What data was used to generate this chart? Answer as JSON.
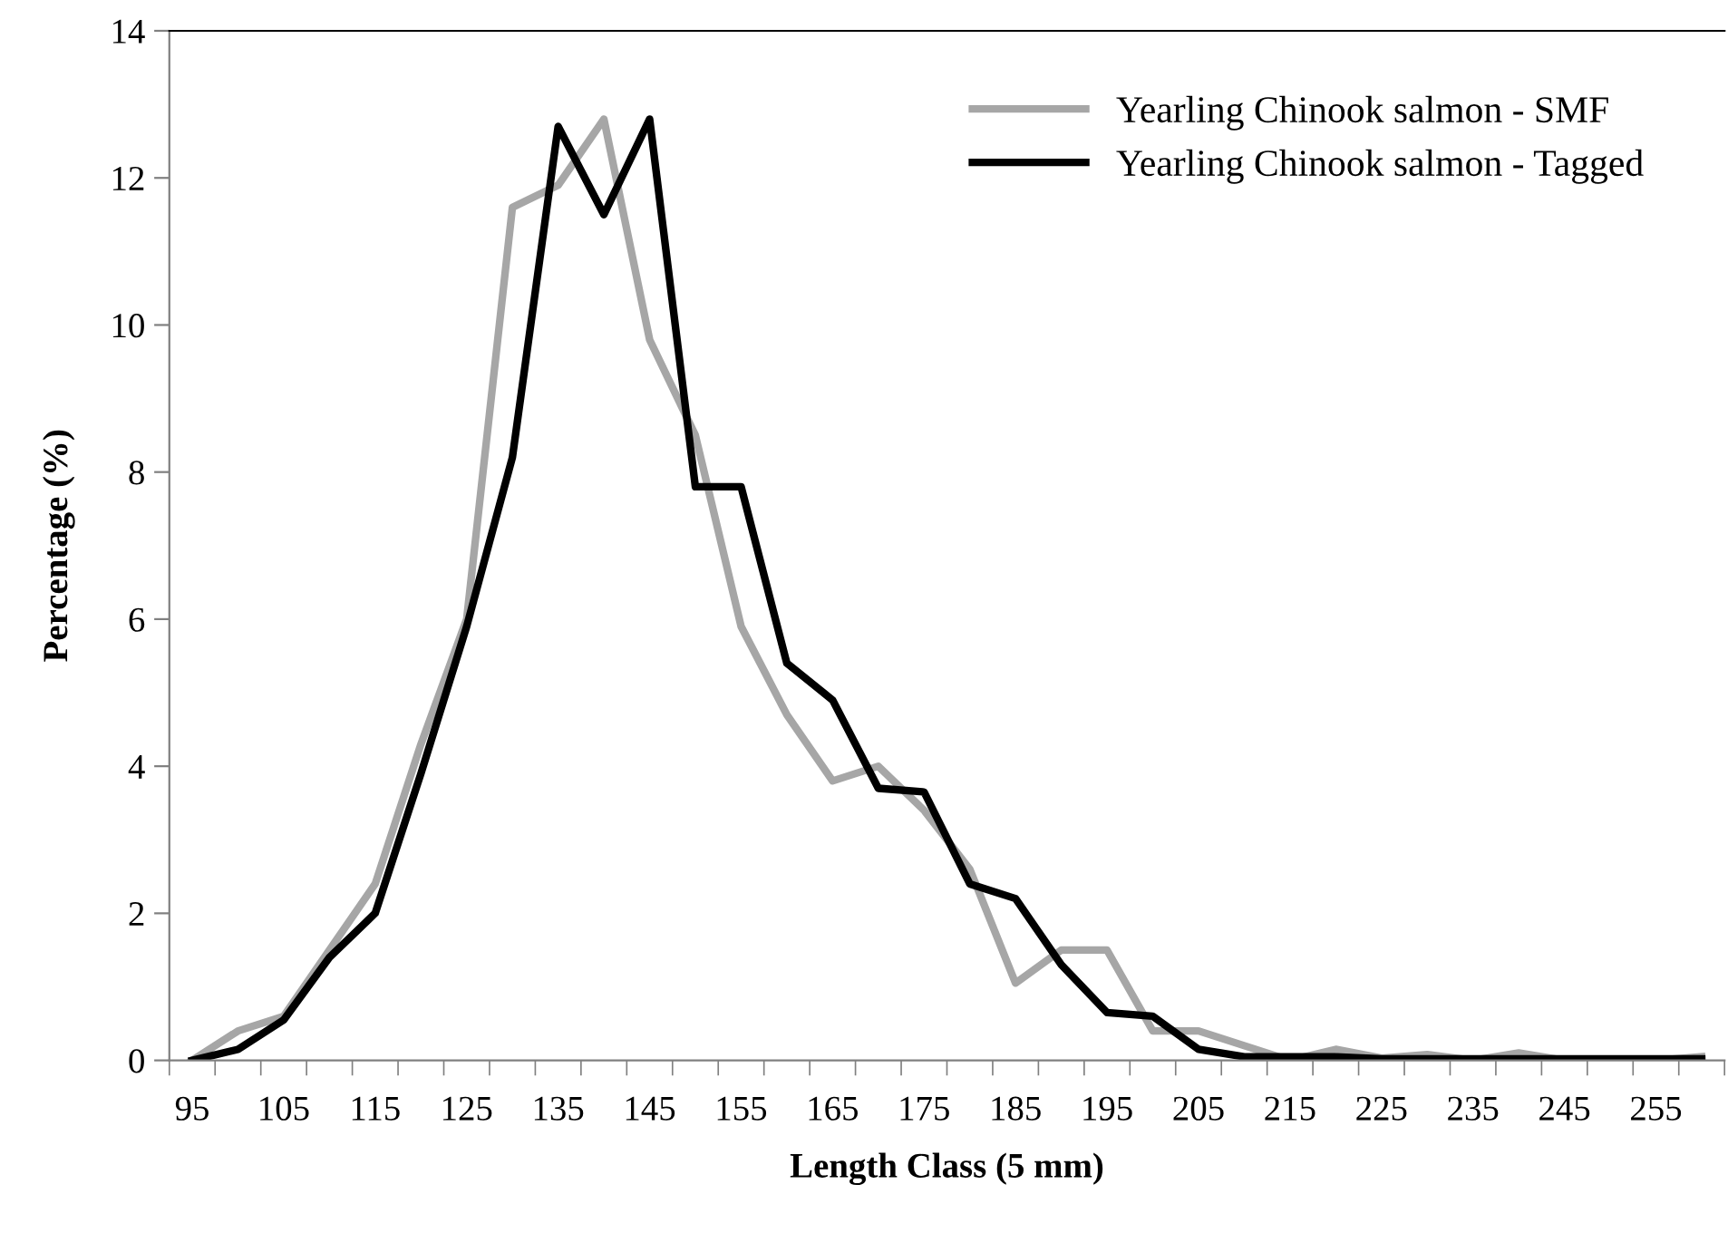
{
  "chart_data": {
    "type": "line",
    "xlabel": "Length Class (5 mm)",
    "ylabel": "Percentage (%)",
    "categories": [
      "95",
      null,
      "105",
      null,
      "115",
      null,
      "125",
      null,
      "135",
      null,
      "145",
      null,
      "155",
      null,
      "165",
      null,
      "175",
      null,
      "185",
      null,
      "195",
      null,
      "205",
      null,
      "215",
      null,
      "225",
      null,
      "235",
      null,
      "245",
      null,
      "255",
      null
    ],
    "series": [
      {
        "name": "Yearling Chinook salmon - SMF",
        "color": "#a6a6a6",
        "values": [
          0,
          0.4,
          0.6,
          1.5,
          2.4,
          4.3,
          6.0,
          11.6,
          11.9,
          12.8,
          9.8,
          8.5,
          5.9,
          4.7,
          3.8,
          4.0,
          3.4,
          2.6,
          1.05,
          1.5,
          1.5,
          0.4,
          0.4,
          0.2,
          0.0,
          0.15,
          0.03,
          0.08,
          0.0,
          0.1,
          0.0,
          0.0,
          0.0,
          0.05
        ]
      },
      {
        "name": "Yearling Chinook salmon - Tagged",
        "color": "#000000",
        "values": [
          0,
          0.15,
          0.55,
          1.4,
          2.0,
          3.9,
          5.9,
          8.2,
          12.7,
          11.5,
          12.8,
          7.8,
          7.8,
          5.4,
          4.9,
          3.7,
          3.65,
          2.4,
          2.2,
          1.3,
          0.65,
          0.6,
          0.15,
          0.05,
          0.05,
          0.05,
          0.02,
          0.02,
          0.02,
          0.02,
          0.02,
          0.02,
          0.02,
          0.02
        ]
      }
    ],
    "ylim": [
      0,
      14
    ],
    "yticks": [
      0,
      2,
      4,
      6,
      8,
      10,
      12,
      14
    ],
    "grid": false,
    "legend": "top right",
    "marker": "none",
    "line_style": "solid"
  }
}
